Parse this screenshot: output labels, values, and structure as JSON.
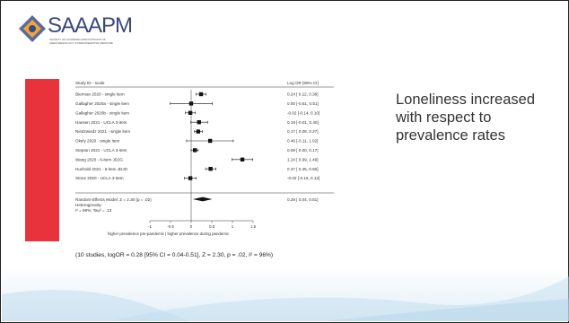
{
  "logo": {
    "name": "SAAAPM",
    "subtitle": "SOCIETY OF ACADEMIC ASSOCIATIONS OF ANESTHESIOLOGY & PERIOPERATIVE MEDICINE"
  },
  "forest_plot": {
    "header_left": "Study ID - scale",
    "header_right": "Log OR  [95% CI]",
    "studies": [
      {
        "label": "Bierman 2020 - single item",
        "ci_text": "0.24 [ 0.12, 0.36]"
      },
      {
        "label": "Gallagher 2020a - single item",
        "ci_text": "0.00 [-0.51, 0.51]"
      },
      {
        "label": "Gallagher 2020b - single item",
        "ci_text": "-0.02 [-0.14, 0.10]"
      },
      {
        "label": "Hansen 2021 - UCLA 3-item",
        "ci_text": "0.19 [-0.01, 0.40]"
      },
      {
        "label": "Niedzwiedz 2021 - single item",
        "ci_text": "0.17 [ 0.08, 0.27]"
      },
      {
        "label": "Okely 2020 - single item",
        "ci_text": "0.46 [-0.11, 1.02]"
      },
      {
        "label": "Stepton 2021 - UCLA 3-item",
        "ci_text": "0.09 [ 0.00, 0.17]"
      },
      {
        "label": "Wang 2020 - 6-item JDJG",
        "ci_text": "1.24 [ 0.99, 1.49]"
      },
      {
        "label": "Hunhold 2021 - 6-item JDJG",
        "ci_text": "0.47 [ 0.35, 0.60]"
      },
      {
        "label": "Stone 2020 - UCLA 3-item",
        "ci_text": "-0.02 [-0.16, 0.12]"
      }
    ],
    "model_label": "Random-Effects Model: Z = 2.30 (p = .02)",
    "model_ci_text": "0.28 [ 0.04, 0.51]",
    "heterogeneity_label": "Heterogeneity:",
    "heterogeneity_value": "I² = 96%; Tau² = .13",
    "x_ticks": [
      "-1",
      "-0.5",
      "0",
      "0.5",
      "1",
      "1.5"
    ],
    "x_caption": "higher prevalence pre-pandemic  |  higher prevalence during pandemic",
    "summary": "(10 studies, logOR = 0.28 [95% CI = 0.04-0.51], Z = 2.30, p = .02, I² = 96%)"
  },
  "bullet_text": "Loneliness increased with respect to prevalence rates",
  "colors": {
    "accent_red": "#e8323c",
    "wave": "#bfdced",
    "logo_blue": "#3a4a7a"
  }
}
